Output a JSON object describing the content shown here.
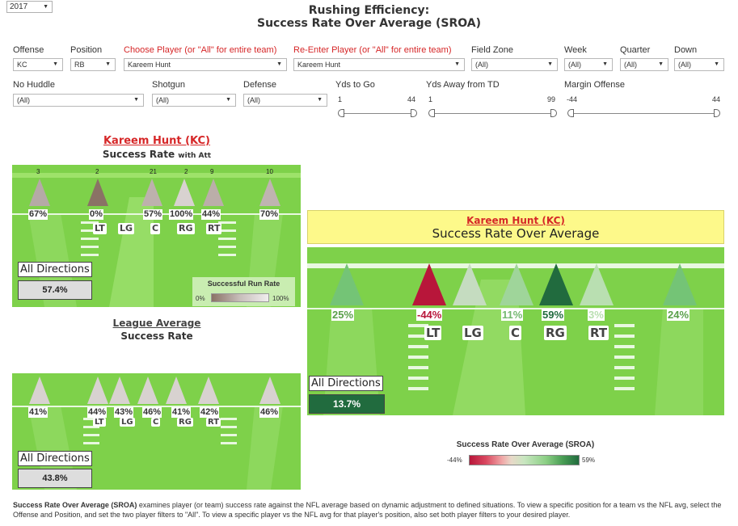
{
  "year": "2017",
  "title_line1": "Rushing Efficiency:",
  "title_line2": "Success Rate Over Average (SROA)",
  "filters": {
    "offense": {
      "label": "Offense",
      "value": "KC"
    },
    "position": {
      "label": "Position",
      "value": "RB"
    },
    "choose_player": {
      "label": "Choose Player (or \"All\" for entire team)",
      "value": "Kareem Hunt"
    },
    "reenter_player": {
      "label": "Re-Enter Player (or \"All\" for entire team)",
      "value": "Kareem Hunt"
    },
    "field_zone": {
      "label": "Field Zone",
      "value": "(All)"
    },
    "week": {
      "label": "Week",
      "value": "(All)"
    },
    "quarter": {
      "label": "Quarter",
      "value": "(All)"
    },
    "down": {
      "label": "Down",
      "value": "(All)"
    },
    "no_huddle": {
      "label": "No Huddle",
      "value": "(All)"
    },
    "shotgun": {
      "label": "Shotgun",
      "value": "(All)"
    },
    "defense": {
      "label": "Defense",
      "value": "(All)"
    },
    "yds_to_go": {
      "label": "Yds to Go",
      "min": "1",
      "max": "44"
    },
    "yds_away_td": {
      "label": "Yds Away from TD",
      "min": "1",
      "max": "99"
    },
    "margin_offense": {
      "label": "Margin Offense",
      "min": "-44",
      "max": "44"
    }
  },
  "player_panel": {
    "player": "Kareem Hunt (KC)",
    "subtitle": "Success Rate",
    "subtitle_small": "with Att",
    "directions": [
      {
        "count": "3",
        "pct": "67%",
        "color": "#b5aaa6"
      },
      {
        "count": "2",
        "pct": "0%",
        "color": "#8a7265"
      },
      {
        "count": "21",
        "pct": "57%",
        "color": "#bdb1ad"
      },
      {
        "count": "2",
        "pct": "100%",
        "color": "#d8d2d0"
      },
      {
        "count": "9",
        "pct": "44%",
        "color": "#bbaea9"
      },
      {
        "count": "10",
        "pct": "70%",
        "color": "#bfb4b0"
      }
    ],
    "positions": [
      "LT",
      "LG",
      "C",
      "RG",
      "RT"
    ],
    "all_label": "All Directions",
    "all_value": "57.4%",
    "legend_title": "Successful Run Rate",
    "legend_min": "0%",
    "legend_max": "100%"
  },
  "league_panel": {
    "title": "League Average",
    "subtitle": "Success Rate",
    "directions": [
      {
        "pct": "41%"
      },
      {
        "pct": "44%"
      },
      {
        "pct": "43%"
      },
      {
        "pct": "46%"
      },
      {
        "pct": "41%"
      },
      {
        "pct": "42%"
      },
      {
        "pct": "46%"
      }
    ],
    "positions": [
      "LT",
      "LG",
      "C",
      "RG",
      "RT"
    ],
    "all_label": "All Directions",
    "all_value": "43.8%"
  },
  "sroa_panel": {
    "player": "Kareem Hunt (KC)",
    "subtitle": "Success Rate Over Average",
    "directions": [
      {
        "pct": "25%",
        "color": "#74c476"
      },
      {
        "pct": "-44%",
        "color": "#b8163a"
      },
      {
        "pct": "",
        "color": "#c5dcc0"
      },
      {
        "pct": "11%",
        "color": "#9fd59a"
      },
      {
        "pct": "59%",
        "color": "#216b3e"
      },
      {
        "pct": "3%",
        "color": "#b9dfb1"
      },
      {
        "pct": "24%",
        "color": "#74c476"
      }
    ],
    "positions": [
      "LT",
      "LG",
      "C",
      "RG",
      "RT"
    ],
    "all_label": "All Directions",
    "all_value": "13.7%",
    "legend_title": "Success Rate Over Average (SROA)",
    "legend_min": "-44%",
    "legend_max": "59%"
  },
  "footer_bold": "Success Rate Over Average (SROA)",
  "footer_text": " examines player (or team) success rate against the NFL average based on dynamic adjustment to defined situations. To view a specific position for a team vs the NFL avg, select the Offense and Position, and set the two player filters to \"All\". To view a specific player vs the NFL avg for that player's position, also set both player filters to your desired player."
}
